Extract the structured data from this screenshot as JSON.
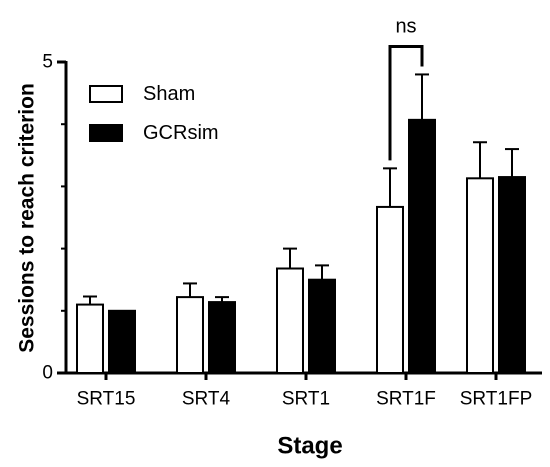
{
  "chart_data": {
    "type": "bar",
    "xlabel": "Stage",
    "ylabel": "Sessions to reach criterion",
    "ylim": [
      0,
      5
    ],
    "yticks": [
      0,
      5
    ],
    "categories": [
      "SRT15",
      "SRT4",
      "SRT1",
      "SRT1F",
      "SRT1FP"
    ],
    "series": [
      {
        "name": "Sham",
        "fill": "#ffffff",
        "values": [
          1.1,
          1.22,
          1.68,
          2.67,
          3.13
        ],
        "errors": [
          0.13,
          0.22,
          0.32,
          0.62,
          0.58
        ]
      },
      {
        "name": "GCRsim",
        "fill": "#000000",
        "values": [
          1.0,
          1.14,
          1.5,
          4.07,
          3.15
        ],
        "errors": [
          0.0,
          0.08,
          0.23,
          0.73,
          0.45
        ]
      }
    ],
    "legend_position": "top-left",
    "annotations": [
      {
        "text": "ns",
        "between": [
          "SRT1F:Sham",
          "SRT1F:GCRsim"
        ]
      }
    ]
  }
}
